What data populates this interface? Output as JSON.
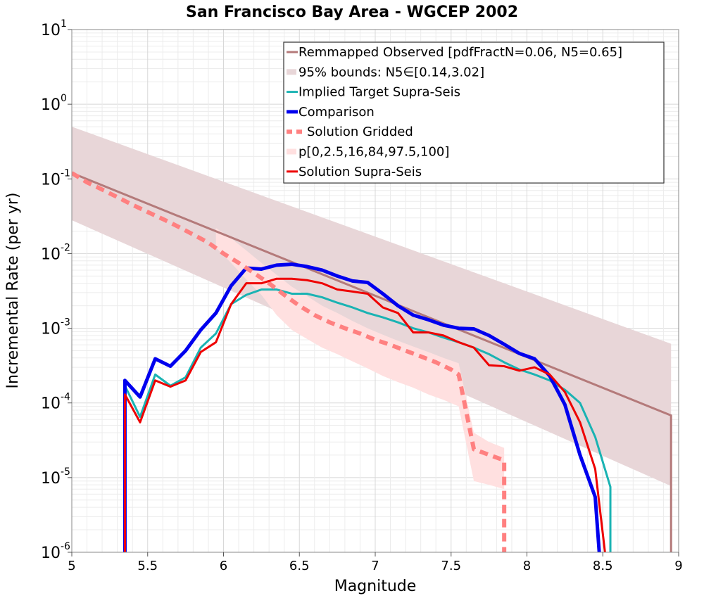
{
  "chart_data": {
    "type": "line",
    "title": "San Francisco Bay Area - WGCEP 2002",
    "xlabel": "Magnitude",
    "ylabel": "Incremental Rate (per yr)",
    "xlim": [
      5,
      9
    ],
    "ylim": [
      1e-06,
      10
    ],
    "yscale": "log",
    "grid": true,
    "legend_position": "top-right",
    "x_ticks": [
      "5",
      "5.5",
      "6",
      "6.5",
      "7",
      "7.5",
      "8",
      "8.5",
      "9"
    ],
    "y_ticks": [
      {
        "base": "10",
        "exp": "-6"
      },
      {
        "base": "10",
        "exp": "-5"
      },
      {
        "base": "10",
        "exp": "-4"
      },
      {
        "base": "10",
        "exp": "-3"
      },
      {
        "base": "10",
        "exp": "-2"
      },
      {
        "base": "10",
        "exp": "-1"
      },
      {
        "base": "10",
        "exp": "0"
      },
      {
        "base": "10",
        "exp": "1"
      }
    ],
    "bands": [
      {
        "name": "95% bounds: N5∈[0.14,3.02]",
        "color": "#e8d6d8",
        "x": [
          5.0,
          8.95
        ],
        "upper": [
          0.5,
          0.00062
        ],
        "lower": [
          0.028,
          7.7e-06
        ]
      },
      {
        "name": "p[0,2.5,16,84,97.5,100]",
        "color": "#ffe0e0",
        "x": [
          5.95,
          6.05,
          6.15,
          6.25,
          6.35,
          6.45,
          6.55,
          6.65,
          6.75,
          6.85,
          6.95,
          7.05,
          7.15,
          7.25,
          7.35,
          7.45,
          7.55,
          7.65,
          7.75,
          7.85
        ],
        "upper": [
          0.022,
          0.016,
          0.011,
          0.0075,
          0.0052,
          0.0036,
          0.0027,
          0.002,
          0.0016,
          0.00125,
          0.001,
          0.00082,
          0.00068,
          0.00057,
          0.00048,
          0.0004,
          0.00034,
          4e-05,
          3e-05,
          2.5e-05
        ],
        "lower": [
          0.012,
          0.0075,
          0.0045,
          0.0028,
          0.0015,
          0.00095,
          0.00072,
          0.00055,
          0.00045,
          0.00036,
          0.00029,
          0.00023,
          0.00019,
          0.00016,
          0.00013,
          0.00011,
          9e-05,
          9e-06,
          8e-06,
          7e-06
        ]
      }
    ],
    "series": [
      {
        "name": "Remmapped Observed [pdfFractN=0.06, N5=0.65]",
        "color": "#b47a7a",
        "width": 3,
        "dash": "",
        "x": [
          5.0,
          8.95,
          8.95
        ],
        "y": [
          0.12,
          6.8e-05,
          8e-07
        ]
      },
      {
        "name": "Implied Target Supra-Seis",
        "color": "#1ab3b3",
        "width": 3,
        "dash": "",
        "x": [
          5.35,
          5.35,
          5.45,
          5.55,
          5.65,
          5.75,
          5.85,
          5.95,
          6.05,
          6.15,
          6.25,
          6.35,
          6.45,
          6.55,
          6.65,
          6.75,
          6.85,
          6.95,
          7.05,
          7.15,
          7.25,
          7.35,
          7.45,
          7.55,
          7.65,
          7.75,
          7.85,
          7.95,
          8.05,
          8.15,
          8.25,
          8.35,
          8.45,
          8.55,
          8.55
        ],
        "y": [
          8e-07,
          0.00017,
          6.5e-05,
          0.00024,
          0.00017,
          0.00022,
          0.00055,
          0.00085,
          0.0021,
          0.0028,
          0.0033,
          0.0033,
          0.0029,
          0.0029,
          0.0026,
          0.0022,
          0.0019,
          0.0016,
          0.0014,
          0.0012,
          0.001,
          0.00088,
          0.00075,
          0.00065,
          0.00055,
          0.00045,
          0.00035,
          0.00028,
          0.00024,
          0.0002,
          0.00015,
          0.0001,
          3.5e-05,
          7.5e-06,
          8e-07
        ]
      },
      {
        "name": "Comparison",
        "color": "#0000ee",
        "width": 5,
        "dash": "",
        "x": [
          5.35,
          5.35,
          5.45,
          5.55,
          5.65,
          5.75,
          5.85,
          5.95,
          6.05,
          6.15,
          6.25,
          6.35,
          6.45,
          6.55,
          6.65,
          6.75,
          6.85,
          6.95,
          7.05,
          7.15,
          7.25,
          7.35,
          7.45,
          7.55,
          7.65,
          7.75,
          7.85,
          7.95,
          8.05,
          8.15,
          8.25,
          8.35,
          8.45,
          8.48
        ],
        "y": [
          8e-07,
          0.0002,
          0.00012,
          0.00039,
          0.00031,
          0.0005,
          0.00095,
          0.0016,
          0.0037,
          0.0064,
          0.0062,
          0.007,
          0.0072,
          0.0067,
          0.006,
          0.005,
          0.0043,
          0.0041,
          0.0029,
          0.002,
          0.0015,
          0.0013,
          0.0011,
          0.001,
          0.00098,
          0.0008,
          0.00061,
          0.00046,
          0.00039,
          0.00023,
          9.5e-05,
          2e-05,
          5.5e-06,
          8e-07
        ]
      },
      {
        "name": "Solution Gridded",
        "color": "#ff8080",
        "width": 6,
        "dash": "12,8",
        "x": [
          5.0,
          5.1,
          5.2,
          5.3,
          5.4,
          5.5,
          5.6,
          5.7,
          5.8,
          5.9,
          6.0,
          6.1,
          6.2,
          6.3,
          6.4,
          6.5,
          6.6,
          6.7,
          6.8,
          6.9,
          7.0,
          7.1,
          7.2,
          7.3,
          7.4,
          7.5,
          7.55,
          7.65,
          7.85,
          7.85
        ],
        "y": [
          0.12,
          0.09,
          0.072,
          0.057,
          0.045,
          0.036,
          0.029,
          0.023,
          0.018,
          0.014,
          0.01,
          0.0075,
          0.0055,
          0.004,
          0.0028,
          0.002,
          0.0015,
          0.0012,
          0.001,
          0.00085,
          0.0007,
          0.0006,
          0.0005,
          0.00042,
          0.00035,
          0.00028,
          0.00024,
          2.4e-05,
          1.7e-05,
          8e-07
        ]
      },
      {
        "name": "Solution Supra-Seis",
        "color": "#ee0000",
        "width": 3,
        "dash": "",
        "x": [
          5.35,
          5.35,
          5.45,
          5.55,
          5.65,
          5.75,
          5.85,
          5.95,
          6.05,
          6.15,
          6.25,
          6.35,
          6.45,
          6.55,
          6.65,
          6.75,
          6.85,
          6.95,
          7.05,
          7.15,
          7.25,
          7.35,
          7.45,
          7.55,
          7.65,
          7.75,
          7.85,
          7.95,
          8.05,
          8.15,
          8.25,
          8.35,
          8.45,
          8.52
        ],
        "y": [
          8e-07,
          0.00013,
          5.5e-05,
          0.0002,
          0.000165,
          0.0002,
          0.00048,
          0.00065,
          0.0021,
          0.004,
          0.004,
          0.0046,
          0.0046,
          0.0044,
          0.004,
          0.0033,
          0.0031,
          0.0029,
          0.0019,
          0.0016,
          0.00088,
          0.00088,
          0.0008,
          0.00065,
          0.00055,
          0.00032,
          0.00031,
          0.00027,
          0.0003,
          0.00024,
          0.00014,
          5.5e-05,
          1.3e-05,
          8e-07
        ]
      }
    ],
    "legend": [
      {
        "label": "Remmapped Observed [pdfFractN=0.06, N5=0.65]",
        "kind": "line",
        "color": "#b47a7a",
        "width": 3,
        "dash": ""
      },
      {
        "label": "95% bounds: N5∈[0.14,3.02]",
        "kind": "band",
        "color": "#e8d6d8",
        "width": 8,
        "dash": ""
      },
      {
        "label": "Implied Target Supra-Seis",
        "kind": "line",
        "color": "#1ab3b3",
        "width": 3,
        "dash": ""
      },
      {
        "label": "Comparison",
        "kind": "line",
        "color": "#0000ee",
        "width": 5,
        "dash": ""
      },
      {
        "label": "Solution Gridded",
        "kind": "line",
        "color": "#ff8080",
        "width": 6,
        "dash": "12,8"
      },
      {
        "label": "p[0,2.5,16,84,97.5,100]",
        "kind": "band",
        "color": "#ffe0e0",
        "width": 8,
        "dash": ""
      },
      {
        "label": "Solution Supra-Seis",
        "kind": "line",
        "color": "#ee0000",
        "width": 3,
        "dash": ""
      }
    ]
  }
}
